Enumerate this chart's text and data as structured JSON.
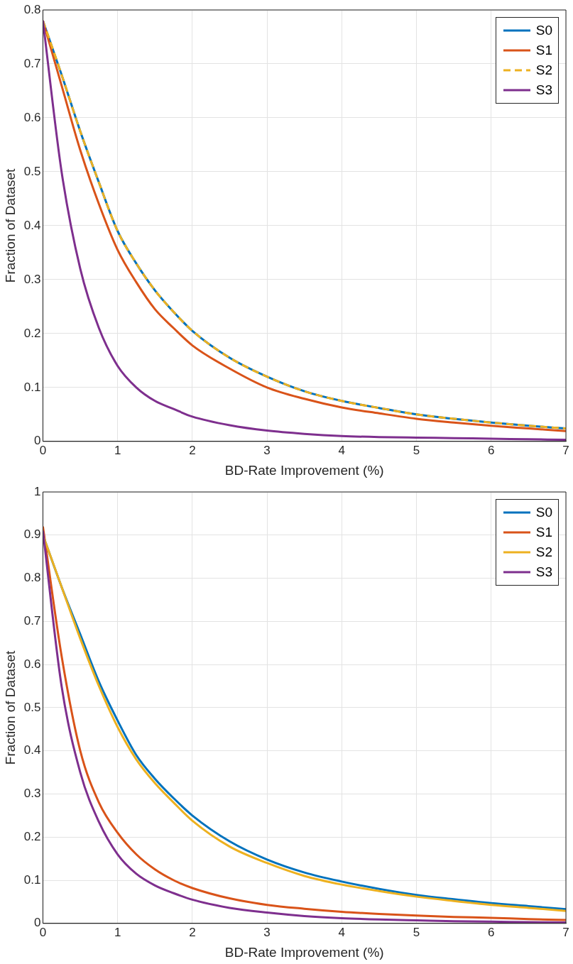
{
  "chart_data": [
    {
      "type": "line",
      "xlabel": "BD-Rate Improvement (%)",
      "ylabel": "Fraction of Dataset",
      "x": [
        0,
        0.25,
        0.5,
        0.75,
        1,
        1.25,
        1.5,
        1.75,
        2,
        2.5,
        3,
        3.5,
        4,
        4.5,
        5,
        5.5,
        6,
        6.5,
        7
      ],
      "xlim": [
        0,
        7
      ],
      "xticks": [
        0,
        1,
        2,
        3,
        4,
        5,
        6,
        7
      ],
      "ylim": [
        0,
        0.8
      ],
      "yticks": [
        0,
        0.1,
        0.2,
        0.3,
        0.4,
        0.5,
        0.6,
        0.7,
        0.8
      ],
      "grid": true,
      "legend": "top right",
      "series": [
        {
          "name": "S0",
          "color": "#0072bd",
          "values": [
            0.78,
            0.68,
            0.575,
            0.48,
            0.39,
            0.33,
            0.28,
            0.24,
            0.205,
            0.155,
            0.12,
            0.093,
            0.075,
            0.062,
            0.05,
            0.042,
            0.035,
            0.029,
            0.024
          ]
        },
        {
          "name": "S1",
          "color": "#d95319",
          "values": [
            0.78,
            0.66,
            0.54,
            0.44,
            0.355,
            0.295,
            0.245,
            0.21,
            0.178,
            0.135,
            0.1,
            0.079,
            0.063,
            0.052,
            0.042,
            0.035,
            0.029,
            0.024,
            0.019
          ]
        },
        {
          "name": "S2",
          "color": "#edb120",
          "line_style": "dashed",
          "values": [
            0.78,
            0.68,
            0.575,
            0.48,
            0.39,
            0.33,
            0.28,
            0.24,
            0.205,
            0.155,
            0.12,
            0.093,
            0.075,
            0.062,
            0.05,
            0.042,
            0.035,
            0.029,
            0.024
          ]
        },
        {
          "name": "S3",
          "color": "#7e2f8e",
          "values": [
            0.78,
            0.5,
            0.32,
            0.21,
            0.14,
            0.1,
            0.075,
            0.06,
            0.046,
            0.03,
            0.02,
            0.014,
            0.01,
            0.008,
            0.007,
            0.006,
            0.005,
            0.004,
            0.003
          ]
        }
      ]
    },
    {
      "type": "line",
      "xlabel": "BD-Rate Improvement (%)",
      "ylabel": "Fraction of Dataset",
      "x": [
        0,
        0.25,
        0.5,
        0.75,
        1,
        1.25,
        1.5,
        1.75,
        2,
        2.5,
        3,
        3.5,
        4,
        4.5,
        5,
        5.5,
        6,
        6.5,
        7
      ],
      "xlim": [
        0,
        7
      ],
      "xticks": [
        0,
        1,
        2,
        3,
        4,
        5,
        6,
        7
      ],
      "ylim": [
        0,
        1
      ],
      "yticks": [
        0,
        0.1,
        0.2,
        0.3,
        0.4,
        0.5,
        0.6,
        0.7,
        0.8,
        0.9,
        1
      ],
      "grid": true,
      "legend": "top right",
      "series": [
        {
          "name": "S0",
          "color": "#0072bd",
          "values": [
            0.9,
            0.78,
            0.67,
            0.56,
            0.47,
            0.39,
            0.335,
            0.29,
            0.25,
            0.19,
            0.148,
            0.118,
            0.097,
            0.08,
            0.066,
            0.056,
            0.047,
            0.04,
            0.033
          ]
        },
        {
          "name": "S1",
          "color": "#d95319",
          "values": [
            0.92,
            0.62,
            0.4,
            0.28,
            0.21,
            0.16,
            0.125,
            0.1,
            0.082,
            0.058,
            0.043,
            0.034,
            0.027,
            0.022,
            0.018,
            0.015,
            0.013,
            0.01,
            0.008
          ]
        },
        {
          "name": "S2",
          "color": "#edb120",
          "values": [
            0.9,
            0.78,
            0.66,
            0.55,
            0.455,
            0.38,
            0.325,
            0.28,
            0.238,
            0.178,
            0.14,
            0.11,
            0.09,
            0.075,
            0.062,
            0.052,
            0.043,
            0.036,
            0.029
          ]
        },
        {
          "name": "S3",
          "color": "#7e2f8e",
          "values": [
            0.91,
            0.55,
            0.35,
            0.235,
            0.16,
            0.115,
            0.088,
            0.07,
            0.055,
            0.036,
            0.025,
            0.017,
            0.012,
            0.009,
            0.007,
            0.005,
            0.004,
            0.003,
            0.002
          ]
        }
      ]
    }
  ]
}
